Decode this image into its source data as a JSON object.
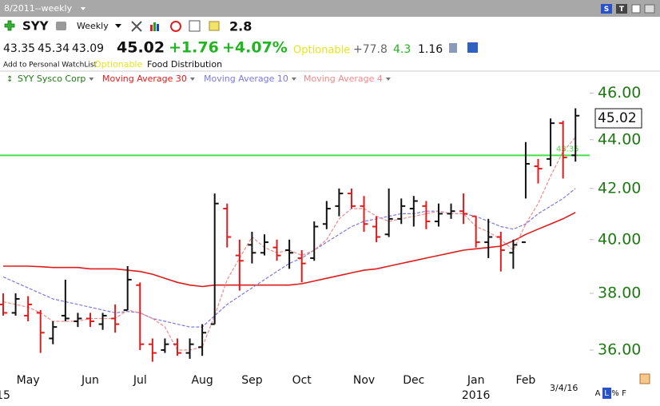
{
  "ui": {
    "window_title": "8/2011--weekly",
    "symbol": "SYY",
    "timeframe": "Weekly",
    "toolbar_value": "2.8",
    "quote": {
      "open": "43.35",
      "high": "45.34",
      "low": "43.09",
      "last": "45.02",
      "change": "+1.76",
      "change_pct": "+4.07%",
      "optionable": "Optionable",
      "stat1": "+77.8",
      "stat2": "4.3",
      "stat3": "1.16"
    },
    "watchlist_link": "Add to Personal WatchList",
    "optionable_tag": "Optionable",
    "industry": "Food Distribution",
    "date_label": "3/4/16",
    "corner_buttons": [
      "S",
      "T"
    ],
    "bottom_buttons": [
      "A",
      "L",
      "%",
      "F"
    ]
  },
  "chart_data": {
    "type": "ohlc",
    "log": true,
    "categories": [
      null,
      null,
      "May",
      null,
      null,
      null,
      null,
      "Jun",
      null,
      null,
      null,
      "Jul",
      null,
      null,
      null,
      null,
      "Aug",
      null,
      null,
      null,
      "Sep",
      null,
      null,
      null,
      "Oct",
      null,
      null,
      null,
      null,
      "Nov",
      null,
      null,
      null,
      "Dec",
      null,
      null,
      null,
      null,
      "Jan",
      null,
      null,
      null,
      "Feb",
      null,
      null,
      null,
      null
    ],
    "x_sublabels": [
      "15",
      null,
      null,
      null,
      null,
      null,
      null,
      null,
      null,
      null,
      null,
      null,
      null,
      null,
      null,
      null,
      null,
      null,
      null,
      null,
      null,
      null,
      null,
      null,
      null,
      null,
      null,
      null,
      null,
      null,
      null,
      null,
      null,
      null,
      null,
      null,
      null,
      null,
      "2016",
      null,
      null,
      null,
      null,
      null,
      null,
      null,
      null
    ],
    "ohlc": {
      "name": "SYY Sysco Corp",
      "name_color": "#1e7a12",
      "up_color": "#111111",
      "down_color": "#e01b1b",
      "open": [
        37.6,
        37.3,
        37.2,
        37.3,
        36.4,
        37.2,
        37.0,
        37.1,
        36.9,
        37.1,
        37.4,
        38.3,
        36.2,
        36.0,
        36.2,
        35.9,
        36.1,
        36.9,
        41.2,
        39.4,
        39.8,
        39.5,
        39.7,
        39.6,
        39.3,
        39.3,
        40.6,
        41.3,
        41.8,
        41.3,
        40.5,
        40.2,
        40.8,
        41.2,
        41.3,
        40.7,
        41.0,
        41.1,
        40.9,
        39.9,
        40.1,
        39.5,
        39.9,
        42.9,
        43.2,
        44.7,
        43.35
      ],
      "high": [
        38.0,
        38.0,
        37.9,
        37.4,
        37.0,
        38.5,
        37.3,
        37.3,
        37.3,
        37.6,
        39.0,
        38.4,
        36.4,
        36.4,
        36.4,
        36.4,
        36.9,
        41.8,
        41.4,
        40.0,
        40.3,
        40.2,
        40.0,
        40.0,
        39.6,
        40.7,
        41.5,
        42.0,
        42.0,
        41.7,
        40.9,
        42.0,
        41.6,
        41.7,
        41.5,
        41.4,
        41.4,
        41.8,
        40.9,
        40.8,
        40.3,
        40.0,
        43.9,
        43.2,
        44.9,
        44.8,
        45.34
      ],
      "low": [
        37.2,
        37.2,
        37.0,
        35.9,
        36.2,
        37.0,
        36.8,
        36.8,
        36.7,
        36.6,
        37.4,
        36.0,
        35.6,
        35.9,
        35.8,
        35.7,
        35.8,
        36.9,
        39.7,
        38.1,
        39.1,
        39.4,
        39.2,
        38.9,
        38.4,
        39.2,
        40.4,
        40.9,
        41.2,
        40.3,
        39.9,
        40.1,
        40.6,
        40.5,
        40.4,
        40.5,
        40.8,
        40.6,
        39.7,
        39.3,
        38.8,
        38.9,
        41.6,
        42.2,
        42.9,
        42.4,
        43.09
      ],
      "close": [
        37.3,
        37.8,
        37.6,
        36.6,
        36.8,
        37.1,
        37.1,
        37.0,
        37.2,
        36.9,
        38.5,
        36.2,
        35.9,
        36.2,
        35.9,
        36.2,
        36.6,
        41.4,
        40.1,
        39.2,
        39.5,
        39.9,
        39.4,
        39.5,
        39.1,
        40.5,
        41.2,
        41.8,
        41.3,
        40.6,
        40.1,
        40.8,
        41.3,
        41.5,
        40.7,
        41.0,
        41.1,
        41.0,
        39.9,
        40.1,
        39.6,
        39.8,
        43.0,
        42.8,
        44.7,
        43.26,
        45.02
      ]
    },
    "series": [
      {
        "name": "Moving Average 30",
        "color": "#e01b1b",
        "dash": false,
        "values": [
          39.0,
          39.0,
          39.0,
          38.98,
          38.95,
          38.95,
          38.95,
          38.9,
          38.9,
          38.9,
          38.85,
          38.8,
          38.7,
          38.55,
          38.4,
          38.3,
          38.25,
          38.3,
          38.3,
          38.3,
          38.3,
          38.3,
          38.3,
          38.3,
          38.35,
          38.45,
          38.55,
          38.65,
          38.75,
          38.85,
          38.9,
          39.0,
          39.1,
          39.2,
          39.3,
          39.4,
          39.5,
          39.6,
          39.65,
          39.7,
          39.75,
          39.95,
          40.2,
          40.4,
          40.6,
          40.8,
          41.05
        ]
      },
      {
        "name": "Moving Average 10",
        "color": "#7a7ae0",
        "dash": true,
        "values": [
          38.6,
          38.4,
          38.2,
          38.0,
          37.8,
          37.7,
          37.6,
          37.5,
          37.4,
          37.3,
          37.35,
          37.3,
          37.1,
          37.0,
          36.9,
          36.8,
          36.8,
          37.2,
          37.6,
          37.9,
          38.2,
          38.5,
          38.8,
          39.1,
          39.3,
          39.6,
          39.9,
          40.2,
          40.5,
          40.7,
          40.8,
          40.9,
          41.0,
          41.0,
          41.1,
          41.1,
          41.0,
          41.0,
          40.9,
          40.7,
          40.5,
          40.4,
          40.6,
          41.0,
          41.3,
          41.6,
          42.0
        ]
      },
      {
        "name": "Moving Average 4",
        "color": "#f08a8a",
        "dash": true,
        "values": [
          37.7,
          37.6,
          37.5,
          37.3,
          37.0,
          37.0,
          37.0,
          37.1,
          37.1,
          37.1,
          37.4,
          37.3,
          37.1,
          36.8,
          36.0,
          36.0,
          36.1,
          37.2,
          38.5,
          39.3,
          40.1,
          39.7,
          39.5,
          39.6,
          39.4,
          39.6,
          40.0,
          40.8,
          41.2,
          41.2,
          40.9,
          40.7,
          40.8,
          40.9,
          41.0,
          41.1,
          41.0,
          41.0,
          40.5,
          40.3,
          40.0,
          39.6,
          40.6,
          41.4,
          42.5,
          43.5,
          44.1
        ]
      }
    ],
    "hline": {
      "value": 43.35,
      "label": "43.35",
      "color": "#44e044"
    },
    "ylim": [
      35.4,
      46.3
    ],
    "yticks": [
      {
        "value": 36,
        "label": "36.00"
      },
      {
        "value": 38,
        "label": "38.00"
      },
      {
        "value": 40,
        "label": "40.00"
      },
      {
        "value": 42,
        "label": "42.00"
      },
      {
        "value": 44,
        "label": "44.00"
      },
      {
        "value": 46,
        "label": "46.00"
      }
    ],
    "axis_color": "#1e7a12"
  }
}
